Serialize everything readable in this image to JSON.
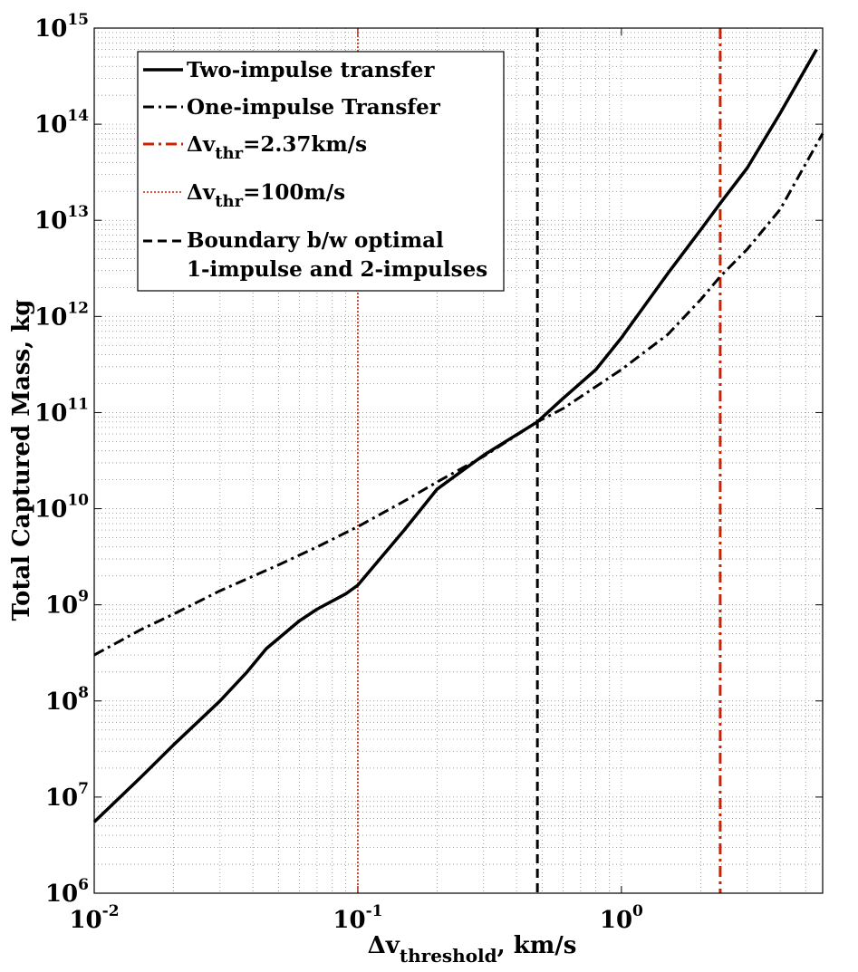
{
  "chart_data": {
    "type": "line",
    "xlabel_main": "Δv",
    "xlabel_sub": "threshold",
    "xlabel_suffix": ", km/s",
    "ylabel": "Total Captured Mass, kg",
    "x_scale": "log",
    "y_scale": "log",
    "xlim": [
      0.01,
      5.8
    ],
    "ylim": [
      1000000.0,
      1000000000000000.0
    ],
    "grid": "on (major and minor, dotted)",
    "legend_position": "top-left",
    "x_ticks": [
      {
        "base": "10",
        "exp": "-2",
        "value": 0.01
      },
      {
        "base": "10",
        "exp": "-1",
        "value": 0.1
      },
      {
        "base": "10",
        "exp": "0",
        "value": 1
      }
    ],
    "y_ticks": [
      {
        "base": "10",
        "exp": "6",
        "value": 1000000.0
      },
      {
        "base": "10",
        "exp": "7",
        "value": 10000000.0
      },
      {
        "base": "10",
        "exp": "8",
        "value": 100000000.0
      },
      {
        "base": "10",
        "exp": "9",
        "value": 1000000000.0
      },
      {
        "base": "10",
        "exp": "10",
        "value": 10000000000.0
      },
      {
        "base": "10",
        "exp": "11",
        "value": 100000000000.0
      },
      {
        "base": "10",
        "exp": "12",
        "value": 1000000000000.0
      },
      {
        "base": "10",
        "exp": "13",
        "value": 10000000000000.0
      },
      {
        "base": "10",
        "exp": "14",
        "value": 100000000000000.0
      },
      {
        "base": "10",
        "exp": "15",
        "value": 1000000000000000.0
      }
    ],
    "series": [
      {
        "name": "Two-impulse transfer",
        "style": "solid",
        "color": "#000000",
        "x": [
          0.01,
          0.015,
          0.02,
          0.03,
          0.038,
          0.045,
          0.06,
          0.07,
          0.09,
          0.1,
          0.15,
          0.2,
          0.3,
          0.48,
          0.6,
          0.8,
          1.0,
          1.5,
          2.0,
          2.37,
          3.0,
          4.0,
          5.5
        ],
        "y": [
          5500000.0,
          16000000.0,
          35000000.0,
          100000000.0,
          200000000.0,
          350000000.0,
          680000000.0,
          900000000.0,
          1300000000.0,
          1600000000.0,
          6000000000.0,
          16000000000.0,
          36000000000.0,
          80000000000.0,
          140000000000.0,
          280000000000.0,
          600000000000.0,
          2800000000000.0,
          8000000000000.0,
          15000000000000.0,
          35000000000000.0,
          130000000000000.0,
          600000000000000.0
        ]
      },
      {
        "name": "One-impulse Transfer",
        "style": "dashdot",
        "color": "#000000",
        "x": [
          0.01,
          0.015,
          0.02,
          0.03,
          0.05,
          0.07,
          0.1,
          0.15,
          0.2,
          0.3,
          0.48,
          0.6,
          1.0,
          1.5,
          2.0,
          2.37,
          3.0,
          4.0,
          5.8
        ],
        "y": [
          300000000.0,
          550000000.0,
          800000000.0,
          1400000000.0,
          2600000000.0,
          4000000000.0,
          6500000000.0,
          12000000000.0,
          19000000000.0,
          35000000000.0,
          80000000000.0,
          110000000000.0,
          280000000000.0,
          650000000000.0,
          1500000000000.0,
          2600000000000.0,
          5000000000000.0,
          13000000000000.0,
          80000000000000.0
        ]
      }
    ],
    "vertical_lines": [
      {
        "name_main": "Δv",
        "name_sub": "thr",
        "name_suffix": "=2.37km/s",
        "x": 2.37,
        "style": "dashdot",
        "color": "#cc2200"
      },
      {
        "name_main": "Δv",
        "name_sub": "thr",
        "name_suffix": "=100m/s",
        "x": 0.1,
        "style": "dotted",
        "color": "#cc2200"
      },
      {
        "name_line1": "Boundary b/w optimal",
        "name_line2": "1-impulse and 2-impulses",
        "x": 0.48,
        "style": "dashed",
        "color": "#000000"
      }
    ]
  }
}
